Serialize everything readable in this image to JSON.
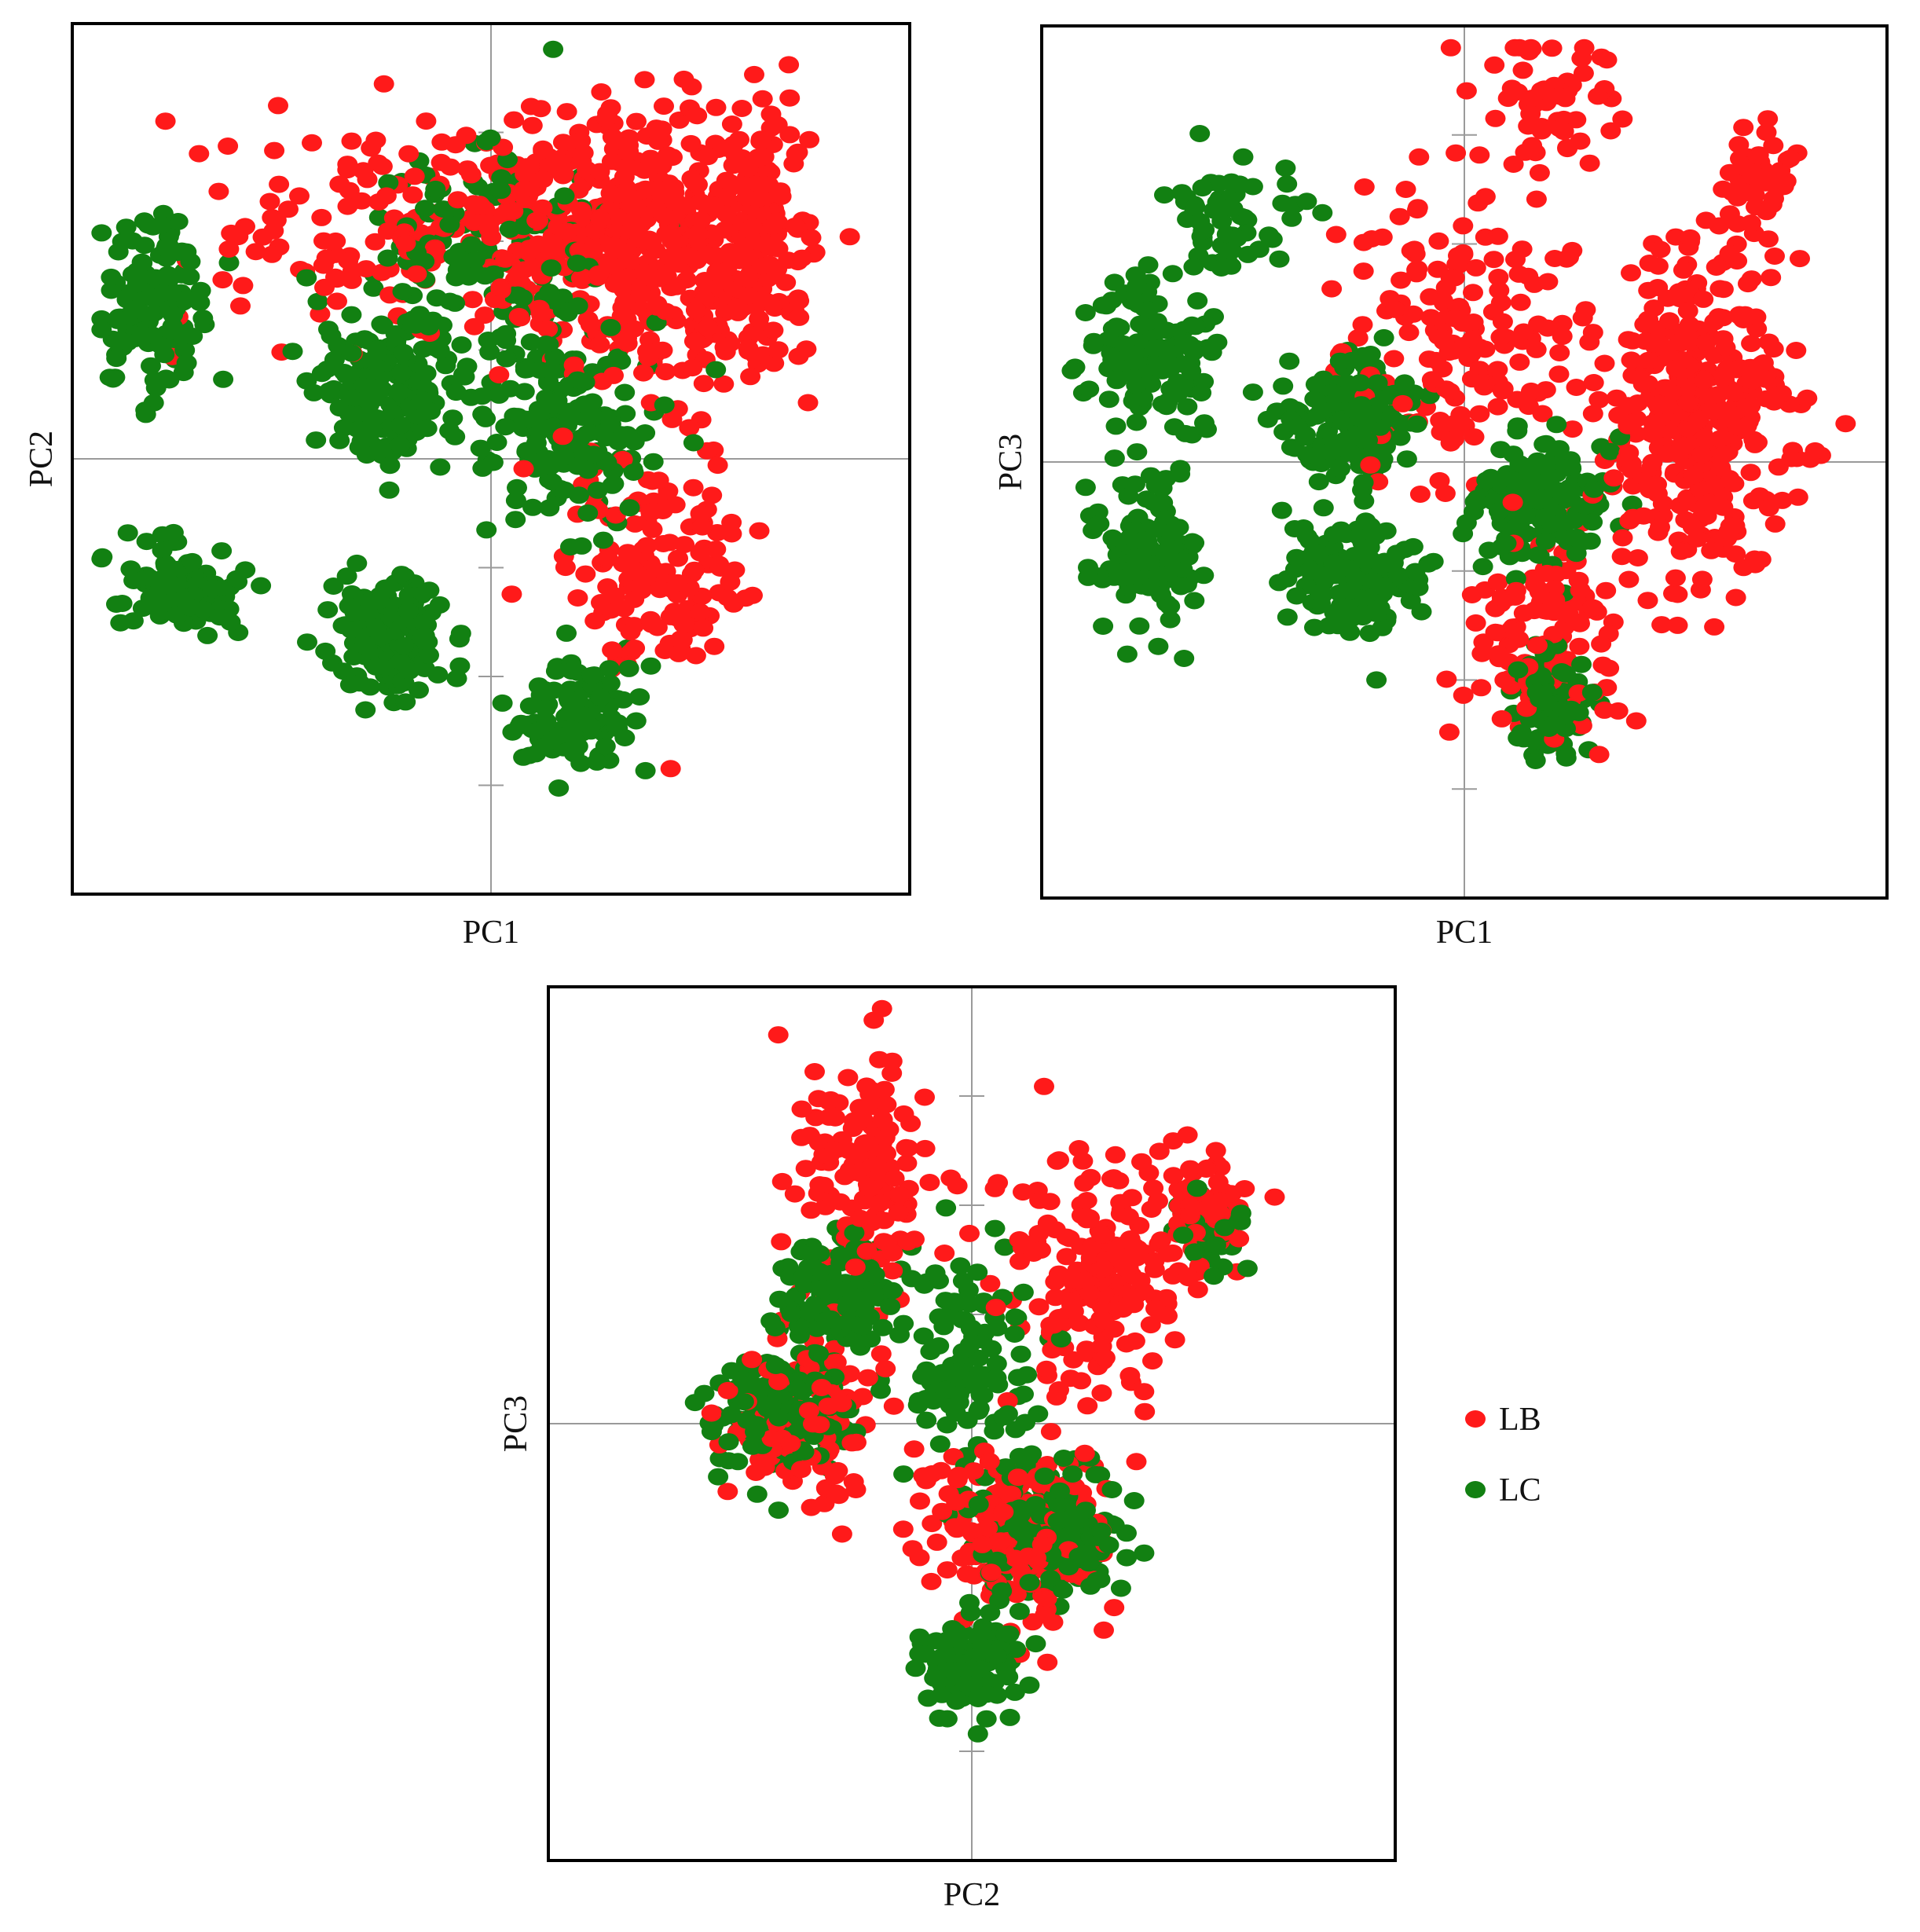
{
  "colors": {
    "LB": "#ff1a1a",
    "LC": "#128012",
    "axis": "#9a9a9a",
    "frame": "#000000"
  },
  "legend": {
    "placement": "right of bottom panel",
    "items": [
      {
        "key": "LB",
        "label": "LB"
      },
      {
        "key": "LC",
        "label": "LC"
      }
    ]
  },
  "chart_data": [
    {
      "type": "scatter",
      "xlabel": "PC1",
      "ylabel": "PC2",
      "xlim": [
        -1,
        1
      ],
      "ylim": [
        -1,
        1
      ],
      "ticks_x": [],
      "ticks_y": [
        -0.75,
        -0.5,
        -0.25,
        0.25,
        0.5,
        0.75
      ],
      "grid": false,
      "series": [
        {
          "name": "LB",
          "clusters": [
            {
              "center": [
                0.4,
                0.45
              ],
              "spread": [
                0.3,
                0.3
              ],
              "count": 380
            },
            {
              "center": [
                0.15,
                0.55
              ],
              "spread": [
                0.25,
                0.25
              ],
              "count": 140
            },
            {
              "center": [
                0.4,
                -0.25
              ],
              "spread": [
                0.2,
                0.25
              ],
              "count": 140
            },
            {
              "center": [
                -0.3,
                0.55
              ],
              "spread": [
                0.35,
                0.25
              ],
              "count": 120
            },
            {
              "center": [
                0.65,
                0.55
              ],
              "spread": [
                0.08,
                0.25
              ],
              "count": 100
            }
          ]
        },
        {
          "name": "LC",
          "clusters": [
            {
              "center": [
                -0.8,
                0.35
              ],
              "spread": [
                0.12,
                0.2
              ],
              "count": 140
            },
            {
              "center": [
                -0.25,
                0.15
              ],
              "spread": [
                0.15,
                0.15
              ],
              "count": 160
            },
            {
              "center": [
                -0.25,
                -0.4
              ],
              "spread": [
                0.13,
                0.13
              ],
              "count": 140
            },
            {
              "center": [
                -0.75,
                -0.3
              ],
              "spread": [
                0.12,
                0.1
              ],
              "count": 110
            },
            {
              "center": [
                0.2,
                -0.58
              ],
              "spread": [
                0.12,
                0.1
              ],
              "count": 110
            },
            {
              "center": [
                0.2,
                0.05
              ],
              "spread": [
                0.2,
                0.2
              ],
              "count": 160
            },
            {
              "center": [
                0.0,
                0.45
              ],
              "spread": [
                0.3,
                0.3
              ],
              "count": 150
            }
          ]
        }
      ]
    },
    {
      "type": "scatter",
      "xlabel": "PC1",
      "ylabel": "PC3",
      "xlim": [
        -1,
        1
      ],
      "ylim": [
        -1,
        1
      ],
      "ticks_x": [],
      "ticks_y": [
        -0.75,
        -0.5,
        -0.25,
        0.25,
        0.5,
        0.75
      ],
      "grid": false,
      "series": [
        {
          "name": "LB",
          "clusters": [
            {
              "center": [
                0.55,
                0.1
              ],
              "spread": [
                0.2,
                0.35
              ],
              "count": 380
            },
            {
              "center": [
                0.2,
                -0.4
              ],
              "spread": [
                0.15,
                0.2
              ],
              "count": 130
            },
            {
              "center": [
                0.0,
                0.3
              ],
              "spread": [
                0.25,
                0.3
              ],
              "count": 170
            },
            {
              "center": [
                0.2,
                0.8
              ],
              "spread": [
                0.15,
                0.15
              ],
              "count": 60
            },
            {
              "center": [
                0.7,
                0.65
              ],
              "spread": [
                0.08,
                0.1
              ],
              "count": 50
            }
          ]
        },
        {
          "name": "LC",
          "clusters": [
            {
              "center": [
                -0.75,
                0.25
              ],
              "spread": [
                0.12,
                0.15
              ],
              "count": 130
            },
            {
              "center": [
                -0.75,
                -0.2
              ],
              "spread": [
                0.12,
                0.15
              ],
              "count": 120
            },
            {
              "center": [
                -0.27,
                0.1
              ],
              "spread": [
                0.15,
                0.15
              ],
              "count": 160
            },
            {
              "center": [
                -0.27,
                -0.27
              ],
              "spread": [
                0.15,
                0.12
              ],
              "count": 150
            },
            {
              "center": [
                0.2,
                -0.1
              ],
              "spread": [
                0.15,
                0.15
              ],
              "count": 140
            },
            {
              "center": [
                0.2,
                -0.55
              ],
              "spread": [
                0.08,
                0.12
              ],
              "count": 100
            },
            {
              "center": [
                -0.55,
                0.55
              ],
              "spread": [
                0.15,
                0.15
              ],
              "count": 60
            }
          ]
        }
      ]
    },
    {
      "type": "scatter",
      "xlabel": "PC2",
      "ylabel": "PC3",
      "xlim": [
        -1,
        1
      ],
      "ylim": [
        -1,
        1
      ],
      "ticks_x": [],
      "ticks_y": [
        -0.75,
        0.25,
        0.5,
        0.75
      ],
      "grid": false,
      "series": [
        {
          "name": "LB",
          "clusters": [
            {
              "center": [
                -0.25,
                0.55
              ],
              "spread": [
                0.15,
                0.25
              ],
              "count": 140
            },
            {
              "center": [
                0.3,
                0.35
              ],
              "spread": [
                0.2,
                0.25
              ],
              "count": 200
            },
            {
              "center": [
                0.1,
                -0.25
              ],
              "spread": [
                0.2,
                0.2
              ],
              "count": 180
            },
            {
              "center": [
                -0.4,
                0.0
              ],
              "spread": [
                0.15,
                0.2
              ],
              "count": 120
            },
            {
              "center": [
                0.55,
                0.5
              ],
              "spread": [
                0.1,
                0.1
              ],
              "count": 80
            }
          ]
        },
        {
          "name": "LC",
          "clusters": [
            {
              "center": [
                -0.33,
                0.3
              ],
              "spread": [
                0.12,
                0.12
              ],
              "count": 140
            },
            {
              "center": [
                -0.45,
                0.03
              ],
              "spread": [
                0.15,
                0.12
              ],
              "count": 160
            },
            {
              "center": [
                0.17,
                -0.25
              ],
              "spread": [
                0.15,
                0.15
              ],
              "count": 180
            },
            {
              "center": [
                0.0,
                -0.55
              ],
              "spread": [
                0.1,
                0.1
              ],
              "count": 110
            },
            {
              "center": [
                0.0,
                0.15
              ],
              "spread": [
                0.15,
                0.25
              ],
              "count": 110
            },
            {
              "center": [
                0.55,
                0.45
              ],
              "spread": [
                0.08,
                0.08
              ],
              "count": 60
            }
          ]
        }
      ]
    }
  ]
}
